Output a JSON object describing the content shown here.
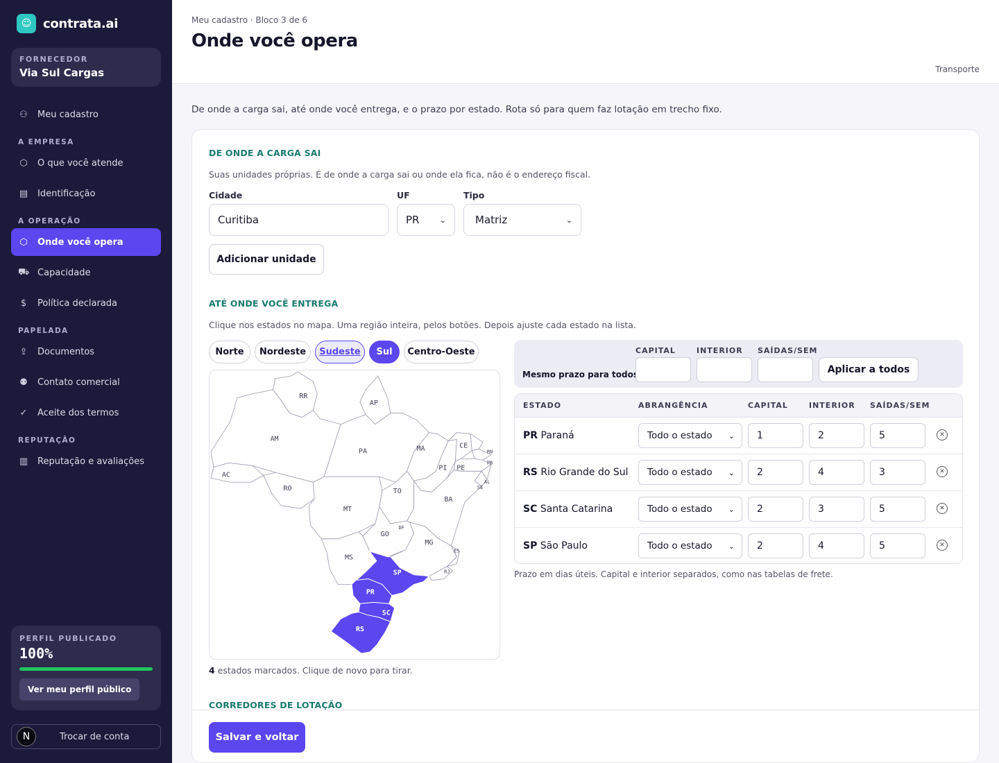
{
  "brand": {
    "name": "contrata.ai",
    "logo_icon": "person-icon"
  },
  "supplier": {
    "label": "FORNECEDOR",
    "name": "Via Sul Cargas"
  },
  "nav": {
    "top": [
      {
        "label": "Meu cadastro",
        "icon": "profile-icon"
      }
    ],
    "sections": [
      {
        "title": "A EMPRESA",
        "items": [
          {
            "label": "O que você atende",
            "icon": "cube-icon"
          },
          {
            "label": "Identificação",
            "icon": "document-icon"
          }
        ]
      },
      {
        "title": "A OPERAÇÃO",
        "items": [
          {
            "label": "Onde você opera",
            "icon": "cube-icon",
            "active": true
          },
          {
            "label": "Capacidade",
            "icon": "truck-icon"
          },
          {
            "label": "Política declarada",
            "icon": "dollar-icon"
          }
        ]
      },
      {
        "title": "PAPELADA",
        "items": [
          {
            "label": "Documentos",
            "icon": "upload-icon"
          },
          {
            "label": "Contato comercial",
            "icon": "people-icon"
          },
          {
            "label": "Aceite dos termos",
            "icon": "check-circle-icon"
          }
        ]
      },
      {
        "title": "REPUTAÇÃO",
        "items": [
          {
            "label": "Reputação e avaliações",
            "icon": "bar-chart-icon"
          }
        ]
      }
    ]
  },
  "profile": {
    "label": "PERFIL PUBLICADO",
    "percent_text": "100%",
    "percent": 100,
    "button": "Ver meu perfil público"
  },
  "account": {
    "avatar": "N",
    "switch_label": "Trocar de conta"
  },
  "header": {
    "breadcrumb": "Meu cadastro · Bloco 3 de 6",
    "title": "Onde você opera",
    "tag": "Transporte"
  },
  "intro": "De onde a carga sai, até onde você entrega, e o prazo por estado. Rota só para quem faz lotação em trecho fixo.",
  "origin": {
    "title": "DE ONDE A CARGA SAI",
    "desc": "Suas unidades próprias. É de onde a carga sai ou onde ela fica, não é o endereço fiscal.",
    "city_label": "Cidade",
    "city_value": "Curitiba",
    "uf_label": "UF",
    "uf_value": "PR",
    "type_label": "Tipo",
    "type_value": "Matriz",
    "add_button": "Adicionar unidade"
  },
  "delivery": {
    "title": "ATÉ ONDE VOCÊ ENTREGA",
    "desc": "Clique nos estados no mapa. Uma região inteira, pelos botões. Depois ajuste cada estado na lista.",
    "regions": [
      "Norte",
      "Nordeste",
      "Sudeste",
      "Sul",
      "Centro-Oeste"
    ],
    "map_selected": [
      "SP",
      "PR",
      "SC",
      "RS"
    ],
    "marked_count": "4",
    "marked_note": " estados marcados. Clique de novo para tirar."
  },
  "bulk": {
    "label": "Mesmo prazo para todos:",
    "col_capital": "CAPITAL",
    "col_interior": "INTERIOR",
    "col_saidas": "SAÍDAS/SEM",
    "apply_button": "Aplicar a todos"
  },
  "table": {
    "headers": {
      "estado": "ESTADO",
      "abrangencia": "ABRANGÊNCIA",
      "capital": "CAPITAL",
      "interior": "INTERIOR",
      "saidas": "SAÍDAS/SEM"
    },
    "rows": [
      {
        "uf": "PR",
        "name": "Paraná",
        "scope": "Todo o estado",
        "capital": "1",
        "interior": "2",
        "saidas": "5"
      },
      {
        "uf": "RS",
        "name": "Rio Grande do Sul",
        "scope": "Todo o estado",
        "capital": "2",
        "interior": "4",
        "saidas": "3"
      },
      {
        "uf": "SC",
        "name": "Santa Catarina",
        "scope": "Todo o estado",
        "capital": "2",
        "interior": "3",
        "saidas": "5"
      },
      {
        "uf": "SP",
        "name": "São Paulo",
        "scope": "Todo o estado",
        "capital": "2",
        "interior": "4",
        "saidas": "5"
      }
    ],
    "note": "Prazo em dias úteis. Capital e interior separados, como nas tabelas de frete."
  },
  "corridors": {
    "title": "CORREDORES DE LOTAÇÃO"
  },
  "footer": {
    "save_button": "Salvar e voltar"
  },
  "colors": {
    "accent": "#5b46f0",
    "sidebar": "#1c1a3a",
    "section_title": "#1b7a6f",
    "progress": "#22c55e"
  }
}
